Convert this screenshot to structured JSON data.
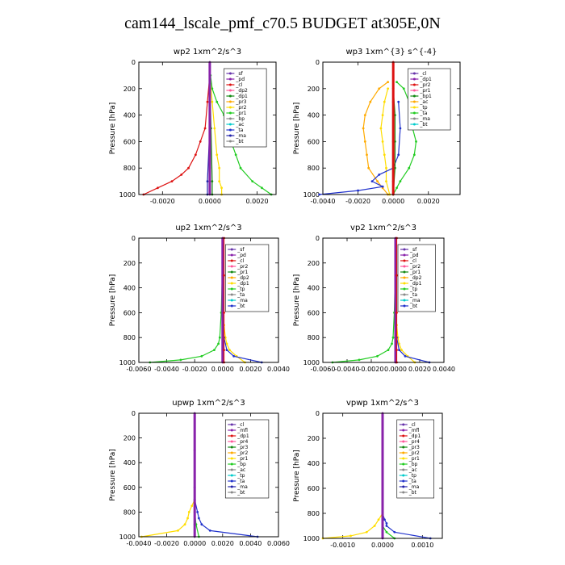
{
  "page_title": "cam144_lscale_pmf_c70.5  BUDGET at305E,0N",
  "colors": {
    "red": "#dd1111",
    "purple": "#8822aa",
    "orange": "#ffaa00",
    "yellow": "#ffdd00",
    "green": "#22cc22",
    "darkgreen": "#118811",
    "blue": "#2233cc",
    "navy": "#2222aa",
    "cyan": "#00cccc",
    "pink": "#ff5599",
    "violet": "#6633aa",
    "grey": "#888888"
  },
  "chart_data": [
    {
      "type": "line",
      "title": "wp2   1xm^2/s^3",
      "ylabel": "Pressure  [hPa]",
      "ylim": [
        0,
        1000
      ],
      "xlim": [
        -0.003,
        0.0028
      ],
      "xticks": [
        -0.002,
        0.0,
        0.002
      ],
      "xtick_labels": [
        "-0.0020",
        "0.0000",
        "0.0020"
      ],
      "yticks": [
        0,
        200,
        400,
        600,
        800,
        1000
      ],
      "ytick_labels": [
        "0",
        "200",
        "400",
        "600",
        "800",
        "1000"
      ],
      "legend": [
        "_sf",
        "_pd",
        "_cl",
        "_dp2",
        "_dp1",
        "_pr3",
        "_pr2",
        "_pr1",
        "_bp",
        "_ac",
        "_ta",
        "_ma",
        "_bt"
      ],
      "series": [
        {
          "name": "_pr1",
          "color": "green",
          "p": [
            100,
            200,
            300,
            400,
            500,
            600,
            700,
            800,
            900,
            950,
            1000
          ],
          "values": [
            3e-05,
            0.0001,
            0.0003,
            0.0006,
            0.0008,
            0.0009,
            0.0011,
            0.0013,
            0.0018,
            0.0022,
            0.0026
          ]
        },
        {
          "name": "_dp1",
          "color": "red",
          "p": [
            100,
            300,
            500,
            600,
            700,
            800,
            850,
            900,
            950,
            1000
          ],
          "values": [
            0.0,
            -0.0001,
            -0.0002,
            -0.0004,
            -0.0006,
            -0.0009,
            -0.0012,
            -0.0016,
            -0.0022,
            -0.0028
          ]
        },
        {
          "name": "_pr3",
          "color": "yellow",
          "p": [
            100,
            300,
            500,
            700,
            800,
            900,
            950,
            1000
          ],
          "values": [
            0.0,
            0.0001,
            0.0002,
            0.0003,
            0.0004,
            0.0004,
            0.0005,
            0.0005
          ]
        },
        {
          "name": "_ta",
          "color": "navy",
          "p": [
            100,
            500,
            900,
            1000
          ],
          "values": [
            0.0,
            0.0,
            -0.0001,
            -0.0001
          ]
        },
        {
          "name": "_bp",
          "color": "darkgreen",
          "p": [
            100,
            500,
            900,
            1000
          ],
          "values": [
            0.0,
            5e-05,
            0.0001,
            0.0001
          ]
        },
        {
          "name": "_pd",
          "color": "purple",
          "p": [
            0,
            200,
            400,
            600,
            800,
            1000
          ],
          "values": [
            0.0,
            0.0,
            0.0,
            0.0,
            0.0,
            0.0
          ]
        }
      ]
    },
    {
      "type": "line",
      "title": "wp3   1xm^{3} s^{-4}",
      "ylabel": "Pressure  [hPa]",
      "ylim": [
        0,
        1000
      ],
      "xlim": [
        -0.004,
        0.0038
      ],
      "xticks": [
        -0.004,
        -0.002,
        0.0,
        0.002
      ],
      "xtick_labels": [
        "-0.0040",
        "-0.0020",
        "0.0000",
        "0.0020"
      ],
      "yticks": [
        0,
        200,
        400,
        600,
        800,
        1000
      ],
      "ytick_labels": [
        "0",
        "200",
        "400",
        "600",
        "800",
        "1000"
      ],
      "legend": [
        "_cl",
        "_dp1",
        "_pr2",
        "_pr1",
        "_bp1",
        "_ac",
        "_tp",
        "_ta",
        "_ma",
        "_bt"
      ],
      "series": [
        {
          "name": "_pr2",
          "color": "orange",
          "p": [
            150,
            200,
            300,
            400,
            500,
            600,
            700,
            800,
            900,
            950,
            1000
          ],
          "values": [
            -0.0003,
            -0.0008,
            -0.0013,
            -0.0016,
            -0.0017,
            -0.0016,
            -0.0015,
            -0.0014,
            -0.0009,
            -0.0006,
            -0.0003
          ]
        },
        {
          "name": "_ac",
          "color": "green",
          "p": [
            150,
            200,
            300,
            400,
            500,
            600,
            700,
            800,
            900,
            950,
            1000
          ],
          "values": [
            0.0002,
            0.0006,
            0.0009,
            0.001,
            0.0011,
            0.0013,
            0.0012,
            0.0009,
            0.0004,
            0.0002,
            0.0
          ]
        },
        {
          "name": "_pr1",
          "color": "yellow",
          "p": [
            200,
            300,
            400,
            500,
            600,
            700,
            800,
            900,
            1000
          ],
          "values": [
            -0.0003,
            -0.0005,
            -0.0006,
            -0.0007,
            -0.0006,
            -0.0005,
            -0.0004,
            -0.0004,
            -0.0002
          ]
        },
        {
          "name": "_tp",
          "color": "blue",
          "p": [
            300,
            500,
            700,
            800,
            850,
            900,
            940,
            970,
            1000
          ],
          "values": [
            0.0003,
            0.0004,
            0.0003,
            0.0,
            -0.0008,
            -0.0012,
            -0.0006,
            -0.002,
            -0.0042
          ]
        },
        {
          "name": "_bp1",
          "color": "darkgreen",
          "p": [
            200,
            400,
            600,
            800,
            1000
          ],
          "values": [
            0.0,
            0.0001,
            0.0001,
            0.0001,
            0.0
          ]
        },
        {
          "name": "_cl",
          "color": "red",
          "p": [
            0,
            300,
            600,
            900,
            1000
          ],
          "values": [
            0.0,
            0.0,
            0.0,
            0.0,
            0.0
          ]
        }
      ]
    },
    {
      "type": "line",
      "title": "up2   1xm^2/s^3",
      "ylabel": "Pressure  [hPa]",
      "ylim": [
        0,
        1000
      ],
      "xlim": [
        -0.006,
        0.004
      ],
      "xticks": [
        -0.006,
        -0.004,
        -0.002,
        0.0,
        0.002,
        0.004
      ],
      "xtick_labels": [
        "-0.0060",
        "-0.0040",
        "-0.0020",
        "0.0000",
        "0.0020",
        "0.0040"
      ],
      "yticks": [
        0,
        200,
        400,
        600,
        800,
        1000
      ],
      "ytick_labels": [
        "0",
        "200",
        "400",
        "600",
        "800",
        "1000"
      ],
      "legend": [
        "_sf",
        "_pd",
        "_cl",
        "_pr2",
        "_pr1",
        "_dp2",
        "_dp1",
        "_tp",
        "_ta",
        "_ma",
        "_bt"
      ],
      "series": [
        {
          "name": "_dp1",
          "color": "green",
          "p": [
            200,
            600,
            800,
            850,
            900,
            950,
            980,
            1000
          ],
          "values": [
            0.0,
            -0.0001,
            -0.0002,
            -0.0003,
            -0.0006,
            -0.0015,
            -0.003,
            -0.0052
          ]
        },
        {
          "name": "_pr1",
          "color": "yellow",
          "p": [
            400,
            700,
            800,
            850,
            900,
            950,
            1000
          ],
          "values": [
            0.0,
            0.0001,
            0.0002,
            0.0003,
            0.0005,
            0.001,
            0.0016
          ]
        },
        {
          "name": "_tp",
          "color": "blue",
          "p": [
            600,
            800,
            900,
            950,
            1000
          ],
          "values": [
            0.0,
            0.0001,
            0.0003,
            0.0008,
            0.0028
          ]
        },
        {
          "name": "_pd",
          "color": "purple",
          "p": [
            0,
            300,
            600,
            900,
            1000
          ],
          "values": [
            0.0,
            0.0,
            0.0,
            0.0,
            0.0
          ]
        },
        {
          "name": "_cl",
          "color": "red",
          "p": [
            0,
            300,
            600,
            900,
            1000
          ],
          "values": [
            0.0001,
            0.0001,
            0.0001,
            0.0001,
            0.0001
          ]
        }
      ]
    },
    {
      "type": "line",
      "title": "vp2   1xm^2/s^3",
      "ylabel": "Pressure  [hPa]",
      "ylim": [
        0,
        1000
      ],
      "xlim": [
        -0.006,
        0.004
      ],
      "xticks": [
        -0.006,
        -0.004,
        -0.002,
        0.0,
        0.002,
        0.004
      ],
      "xtick_labels": [
        "-0.0060",
        "-0.0040",
        "-0.0020",
        "0.0000",
        "0.0020",
        "0.0040"
      ],
      "yticks": [
        0,
        200,
        400,
        600,
        800,
        1000
      ],
      "ytick_labels": [
        "0",
        "200",
        "400",
        "600",
        "800",
        "1000"
      ],
      "legend": [
        "_sf",
        "_pd",
        "_cl",
        "_pr2",
        "_pr1",
        "_dp2",
        "_dp1",
        "_tp",
        "_ta",
        "_ma",
        "_bt"
      ],
      "series": [
        {
          "name": "_dp1",
          "color": "green",
          "p": [
            200,
            600,
            800,
            850,
            900,
            950,
            980,
            1000
          ],
          "values": [
            0.0,
            -0.0001,
            -0.0002,
            -0.0003,
            -0.0006,
            -0.0015,
            -0.003,
            -0.0052
          ]
        },
        {
          "name": "_pr1",
          "color": "yellow",
          "p": [
            400,
            700,
            800,
            850,
            900,
            950,
            1000
          ],
          "values": [
            0.0,
            0.0001,
            0.0002,
            0.0003,
            0.0005,
            0.001,
            0.0016
          ]
        },
        {
          "name": "_tp",
          "color": "blue",
          "p": [
            600,
            800,
            900,
            950,
            1000
          ],
          "values": [
            0.0,
            0.0001,
            0.0003,
            0.0008,
            0.0028
          ]
        },
        {
          "name": "_pd",
          "color": "purple",
          "p": [
            0,
            300,
            600,
            900,
            1000
          ],
          "values": [
            0.0,
            0.0,
            0.0,
            0.0,
            0.0
          ]
        },
        {
          "name": "_cl",
          "color": "red",
          "p": [
            0,
            300,
            600,
            900,
            1000
          ],
          "values": [
            0.0001,
            0.0001,
            0.0001,
            0.0001,
            0.0001
          ]
        }
      ]
    },
    {
      "type": "line",
      "title": "upwp   1xm^2/s^3",
      "ylabel": "Pressure  [hPa]",
      "ylim": [
        0,
        1000
      ],
      "xlim": [
        -0.004,
        0.006
      ],
      "xticks": [
        -0.004,
        -0.002,
        0.0,
        0.002,
        0.004,
        0.006
      ],
      "xtick_labels": [
        "-0.0040",
        "-0.0020",
        "0.0000",
        "0.0020",
        "0.0040",
        "0.0060"
      ],
      "yticks": [
        0,
        200,
        400,
        600,
        800,
        1000
      ],
      "ytick_labels": [
        "0",
        "200",
        "400",
        "600",
        "800",
        "1000"
      ],
      "legend": [
        "_cl",
        "_mfl",
        "_dp1",
        "_pr4",
        "_pr3",
        "_pr2",
        "_pr1",
        "_bp",
        "_ac",
        "_tp",
        "_ta",
        "_ma",
        "_bt"
      ],
      "series": [
        {
          "name": "_pr1",
          "color": "yellow",
          "p": [
            700,
            750,
            800,
            850,
            900,
            950,
            1000
          ],
          "values": [
            0.0,
            -0.0002,
            -0.0004,
            -0.0005,
            -0.0007,
            -0.0012,
            -0.0038
          ]
        },
        {
          "name": "_tp",
          "color": "blue",
          "p": [
            700,
            800,
            850,
            900,
            950,
            1000
          ],
          "values": [
            0.0,
            0.0002,
            0.0003,
            0.0005,
            0.0011,
            0.0045
          ]
        },
        {
          "name": "_ac",
          "color": "green",
          "p": [
            800,
            900,
            1000
          ],
          "values": [
            0.0,
            0.0001,
            0.0003
          ]
        },
        {
          "name": "_mfl",
          "color": "purple",
          "p": [
            0,
            300,
            600,
            900,
            1000
          ],
          "values": [
            0.0,
            0.0,
            0.0,
            0.0,
            0.0
          ]
        }
      ]
    },
    {
      "type": "line",
      "title": "vpwp   1xm^2/s^3",
      "ylabel": "Pressure  [hPa]",
      "ylim": [
        0,
        1000
      ],
      "xlim": [
        -0.0015,
        0.0015
      ],
      "xticks": [
        -0.001,
        0.0,
        0.001
      ],
      "xtick_labels": [
        "-0.0010",
        "0.0000",
        "0.0010"
      ],
      "yticks": [
        0,
        200,
        400,
        600,
        800,
        1000
      ],
      "ytick_labels": [
        "0",
        "200",
        "400",
        "600",
        "800",
        "1000"
      ],
      "legend": [
        "_cl",
        "_mfl",
        "_dp1",
        "_pr4",
        "_pr3",
        "_pr2",
        "_pr1",
        "_bp",
        "_ac",
        "_tp",
        "_ta",
        "_ma",
        "_bt"
      ],
      "series": [
        {
          "name": "_pr1",
          "color": "yellow",
          "p": [
            800,
            850,
            900,
            950,
            980,
            1000
          ],
          "values": [
            0.0,
            -0.0001,
            -0.0002,
            -0.0004,
            -0.0008,
            -0.0015
          ]
        },
        {
          "name": "_tp",
          "color": "blue",
          "p": [
            100,
            300,
            500,
            700,
            800,
            850,
            880,
            900,
            950,
            1000
          ],
          "values": [
            0.0,
            0.0,
            0.0,
            0.0,
            0.0,
            5e-05,
            0.0001,
            0.0001,
            0.0003,
            0.0012
          ]
        },
        {
          "name": "_ac",
          "color": "green",
          "p": [
            900,
            950,
            1000
          ],
          "values": [
            0.0,
            0.0001,
            0.0003
          ]
        },
        {
          "name": "_mfl",
          "color": "purple",
          "p": [
            0,
            300,
            600,
            900,
            1000
          ],
          "values": [
            0.0,
            0.0,
            0.0,
            0.0,
            0.0
          ]
        }
      ]
    }
  ]
}
